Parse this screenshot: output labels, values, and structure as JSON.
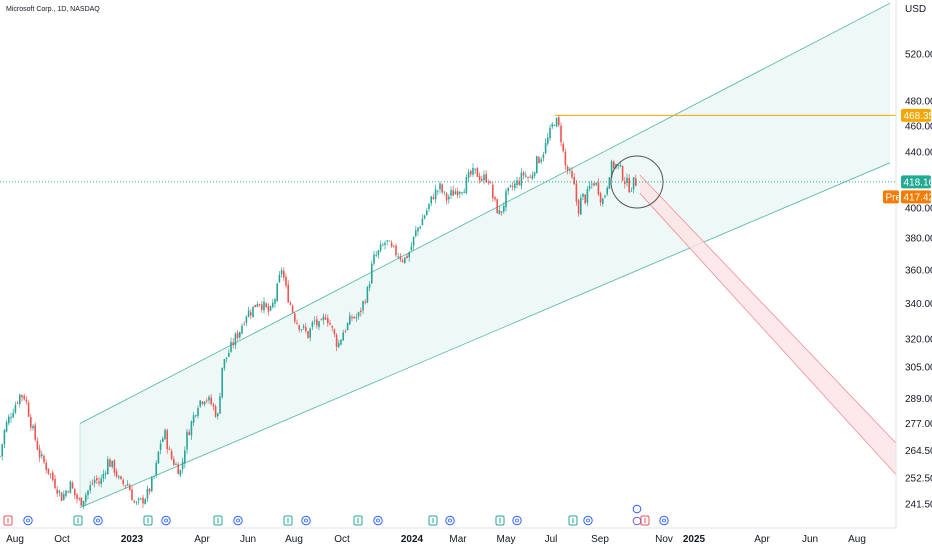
{
  "header": {
    "title": "Microsoft Corp., 1D, NASDAQ",
    "currency": "USD"
  },
  "colors": {
    "up": "#26a69a",
    "down": "#ef5350",
    "channel_fill": "#e8f5f3",
    "channel_line": "#4db6a0",
    "down_channel_fill": "#fde4e6",
    "down_channel_line": "#f28b96",
    "resistance": "#f7a600",
    "last_price": "#22ab94",
    "pre_market": "#f57c00",
    "dotted_price": "#22ab94",
    "circle": "#555555"
  },
  "price_tags": {
    "resistance": "468.35",
    "last": "418.16",
    "pre_label": "Pre",
    "pre_value": "417.42"
  },
  "chart_data": {
    "type": "candlestick",
    "symbol": "Microsoft Corp.",
    "interval": "1D",
    "exchange": "NASDAQ",
    "y_scale": "log",
    "yticks": [
      "520.00",
      "480.00",
      "460.00",
      "440.00",
      "400.00",
      "380.00",
      "360.00",
      "340.00",
      "320.00",
      "305.00",
      "289.00",
      "277.00",
      "264.50",
      "252.50",
      "241.50"
    ],
    "xticks": [
      {
        "label": "Aug",
        "bold": false
      },
      {
        "label": "Oct",
        "bold": false
      },
      {
        "label": "2023",
        "bold": true
      },
      {
        "label": "Apr",
        "bold": false
      },
      {
        "label": "Jun",
        "bold": false
      },
      {
        "label": "Aug",
        "bold": false
      },
      {
        "label": "Oct",
        "bold": false
      },
      {
        "label": "2024",
        "bold": true
      },
      {
        "label": "Mar",
        "bold": false
      },
      {
        "label": "May",
        "bold": false
      },
      {
        "label": "Jul",
        "bold": false
      },
      {
        "label": "Sep",
        "bold": false
      },
      {
        "label": "Nov",
        "bold": false
      },
      {
        "label": "2025",
        "bold": true
      },
      {
        "label": "Apr",
        "bold": false
      },
      {
        "label": "Jun",
        "bold": false
      },
      {
        "label": "Aug",
        "bold": false
      }
    ],
    "price_path": [
      [
        0,
        262
      ],
      [
        5,
        275
      ],
      [
        12,
        283
      ],
      [
        20,
        291
      ],
      [
        25,
        290
      ],
      [
        32,
        275
      ],
      [
        40,
        262
      ],
      [
        48,
        256
      ],
      [
        55,
        250
      ],
      [
        62,
        244
      ],
      [
        70,
        250
      ],
      [
        75,
        245
      ],
      [
        80,
        242
      ],
      [
        88,
        247
      ],
      [
        95,
        252
      ],
      [
        100,
        250
      ],
      [
        108,
        260
      ],
      [
        115,
        256
      ],
      [
        120,
        250
      ],
      [
        128,
        250
      ],
      [
        135,
        241
      ],
      [
        140,
        242
      ],
      [
        148,
        246
      ],
      [
        155,
        254
      ],
      [
        160,
        268
      ],
      [
        165,
        272
      ],
      [
        170,
        262
      ],
      [
        176,
        258
      ],
      [
        181,
        255
      ],
      [
        186,
        270
      ],
      [
        192,
        278
      ],
      [
        198,
        287
      ],
      [
        205,
        290
      ],
      [
        212,
        286
      ],
      [
        218,
        280
      ],
      [
        222,
        305
      ],
      [
        228,
        312
      ],
      [
        235,
        320
      ],
      [
        240,
        325
      ],
      [
        246,
        334
      ],
      [
        252,
        336
      ],
      [
        258,
        342
      ],
      [
        264,
        338
      ],
      [
        270,
        334
      ],
      [
        276,
        345
      ],
      [
        282,
        362
      ],
      [
        285,
        350
      ],
      [
        290,
        340
      ],
      [
        296,
        330
      ],
      [
        302,
        326
      ],
      [
        308,
        322
      ],
      [
        314,
        330
      ],
      [
        320,
        326
      ],
      [
        326,
        334
      ],
      [
        332,
        325
      ],
      [
        338,
        316
      ],
      [
        343,
        324
      ],
      [
        348,
        328
      ],
      [
        352,
        332
      ],
      [
        358,
        332
      ],
      [
        363,
        340
      ],
      [
        368,
        348
      ],
      [
        373,
        366
      ],
      [
        380,
        372
      ],
      [
        386,
        378
      ],
      [
        392,
        372
      ],
      [
        398,
        370
      ],
      [
        404,
        366
      ],
      [
        410,
        372
      ],
      [
        416,
        384
      ],
      [
        422,
        392
      ],
      [
        428,
        400
      ],
      [
        434,
        410
      ],
      [
        440,
        414
      ],
      [
        446,
        406
      ],
      [
        452,
        410
      ],
      [
        458,
        413
      ],
      [
        464,
        415
      ],
      [
        470,
        423
      ],
      [
        476,
        425
      ],
      [
        482,
        420
      ],
      [
        488,
        422
      ],
      [
        494,
        404
      ],
      [
        500,
        395
      ],
      [
        506,
        408
      ],
      [
        512,
        414
      ],
      [
        518,
        418
      ],
      [
        524,
        424
      ],
      [
        530,
        420
      ],
      [
        536,
        432
      ],
      [
        542,
        438
      ],
      [
        548,
        450
      ],
      [
        555,
        466
      ],
      [
        560,
        456
      ],
      [
        565,
        430
      ],
      [
        570,
        423
      ],
      [
        574,
        415
      ],
      [
        578,
        398
      ],
      [
        582,
        408
      ],
      [
        586,
        406
      ],
      [
        590,
        415
      ],
      [
        594,
        418
      ],
      [
        598,
        414
      ],
      [
        602,
        404
      ],
      [
        606,
        412
      ],
      [
        610,
        428
      ],
      [
        615,
        431
      ],
      [
        620,
        427
      ],
      [
        625,
        419
      ],
      [
        630,
        414
      ],
      [
        634,
        418
      ],
      [
        638,
        418
      ]
    ],
    "channel_up": {
      "upper": [
        [
          80,
          277
        ],
        [
          890,
          567
        ]
      ],
      "lower": [
        [
          80,
          240
        ],
        [
          890,
          432
        ]
      ]
    },
    "channel_down": {
      "upper": [
        [
          640,
          423
        ],
        [
          900,
          266
        ]
      ],
      "lower": [
        [
          640,
          410
        ],
        [
          900,
          252
        ]
      ]
    },
    "resistance_level": 468.35,
    "last_price": 418.16,
    "pre_market_price": 417.42
  }
}
